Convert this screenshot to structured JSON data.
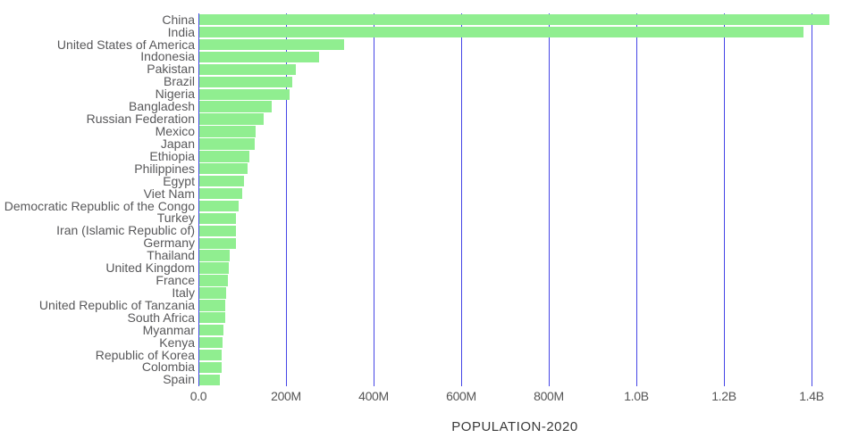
{
  "chart_data": {
    "type": "bar",
    "orientation": "horizontal",
    "title": "",
    "xlabel": "POPULATION-2020",
    "ylabel": "",
    "value_unit": "millions",
    "categories": [
      "China",
      "India",
      "United States of America",
      "Indonesia",
      "Pakistan",
      "Brazil",
      "Nigeria",
      "Bangladesh",
      "Russian Federation",
      "Mexico",
      "Japan",
      "Ethiopia",
      "Philippines",
      "Egypt",
      "Viet Nam",
      "Democratic Republic of the Congo",
      "Turkey",
      "Iran (Islamic Republic of)",
      "Germany",
      "Thailand",
      "United Kingdom",
      "France",
      "Italy",
      "United Republic of Tanzania",
      "South Africa",
      "Myanmar",
      "Kenya",
      "Republic of Korea",
      "Colombia",
      "Spain"
    ],
    "values": [
      1439.3,
      1380.0,
      331.0,
      273.5,
      220.9,
      212.6,
      206.1,
      164.7,
      145.9,
      128.9,
      126.5,
      115.0,
      109.6,
      102.3,
      97.3,
      89.6,
      84.3,
      84.0,
      83.8,
      69.8,
      67.9,
      65.3,
      60.5,
      59.7,
      59.3,
      54.4,
      53.8,
      51.3,
      50.9,
      46.8
    ],
    "x_ticks": [
      {
        "label": "0.0",
        "value": 0
      },
      {
        "label": "200M",
        "value": 200
      },
      {
        "label": "400M",
        "value": 400
      },
      {
        "label": "600M",
        "value": 600
      },
      {
        "label": "800M",
        "value": 800
      },
      {
        "label": "1.0B",
        "value": 1000
      },
      {
        "label": "1.2B",
        "value": 1200
      },
      {
        "label": "1.4B",
        "value": 1400
      }
    ],
    "xlim": [
      0,
      1480
    ],
    "grid": true,
    "legend": "none",
    "colors": {
      "bar": "#90ee90",
      "gridline": "#4545e6",
      "label_text": "#58585a",
      "tick_text": "#555555",
      "axis_title_text": "#3a3a3a",
      "background": "#ffffff"
    }
  }
}
